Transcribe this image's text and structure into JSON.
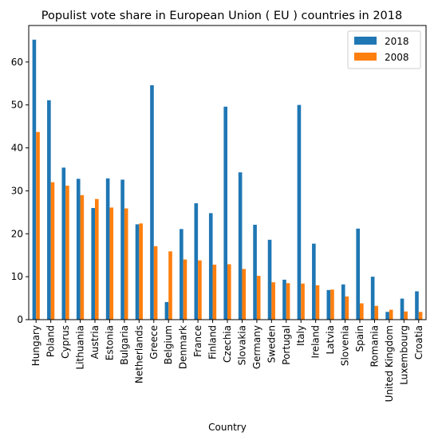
{
  "chart_data": {
    "type": "bar",
    "title": "Populist vote share in European Union ( EU ) countries in 2018",
    "xlabel": "Country",
    "ylabel": "",
    "ylim": [
      0,
      68.5
    ],
    "yticks": [
      0,
      10,
      20,
      30,
      40,
      50,
      60
    ],
    "grid": false,
    "legend_position": "top-right",
    "categories": [
      "Hungary",
      "Poland",
      "Cyprus",
      "Lithuania",
      "Austria",
      "Estonia",
      "Bulgaria",
      "Netherlands",
      "Greece",
      "Belgium",
      "Denmark",
      "France",
      "Finland",
      "Czechia",
      "Slovakia",
      "Germany",
      "Sweden",
      "Portugal",
      "Italy",
      "Ireland",
      "Latvia",
      "Slovenia",
      "Spain",
      "Romania",
      "United Kingdom",
      "Luxembourg",
      "Croatia"
    ],
    "series": [
      {
        "name": "2018",
        "color": "#1f77b4",
        "values": [
          65.2,
          51.1,
          35.4,
          32.8,
          26.0,
          32.9,
          32.6,
          22.2,
          54.6,
          4.1,
          21.1,
          27.1,
          24.8,
          49.6,
          34.3,
          22.1,
          18.6,
          9.3,
          50.0,
          17.7,
          6.9,
          8.2,
          21.2,
          10.0,
          1.8,
          4.9,
          6.6
        ]
      },
      {
        "name": "2008",
        "color": "#ff7f0e",
        "values": [
          43.7,
          32.0,
          31.2,
          29.0,
          28.1,
          26.1,
          25.9,
          22.4,
          17.1,
          15.9,
          14.0,
          13.8,
          12.8,
          12.9,
          11.8,
          10.2,
          8.7,
          8.5,
          8.4,
          8.0,
          7.0,
          5.4,
          3.8,
          3.2,
          2.3,
          1.9,
          1.8
        ]
      }
    ]
  }
}
